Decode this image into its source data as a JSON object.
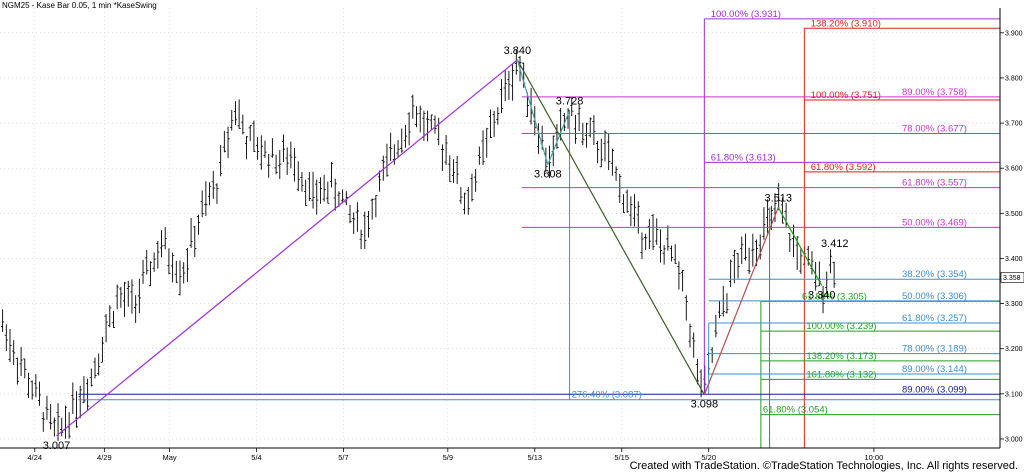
{
  "header": {
    "title": "NGM25 - Kase Bar 0.05, 1 min  *KaseSwing"
  },
  "footer": {
    "credit": "Created with TradeStation. ©TradeStation Technologies, Inc. All rights reserved."
  },
  "colors": {
    "purple": "#9b30d9",
    "magenta": "#cc33cc",
    "red": "#dd2222",
    "blue": "#3b8fd0",
    "green": "#22a022",
    "navy": "#1a1a99",
    "olive": "#3d5f2a",
    "teal": "#4aa0a0",
    "brown": "#b05050",
    "bars": "#000000"
  },
  "chart_data": {
    "type": "ohlc",
    "yaxis": {
      "range": [
        2.98,
        3.955
      ],
      "ticks": [
        "3.000",
        "3.100",
        "3.200",
        "3.300",
        "3.400",
        "3.500",
        "3.600",
        "3.700",
        "3.800",
        "3.900"
      ],
      "current_price": "3.358"
    },
    "xaxis": {
      "ticks": [
        {
          "label": "4/24",
          "x": 8
        },
        {
          "label": "4/29",
          "x": 24
        },
        {
          "label": "May",
          "x": 39
        },
        {
          "label": "5/4",
          "x": 59
        },
        {
          "label": "5/7",
          "x": 79
        },
        {
          "label": "5/9",
          "x": 103
        },
        {
          "label": "5/13",
          "x": 123
        },
        {
          "label": "5/15",
          "x": 143
        },
        {
          "label": "5/20",
          "x": 163
        },
        {
          "label": "10:00",
          "x": 201
        }
      ]
    },
    "swings": [
      {
        "label": "3.007",
        "x": 13,
        "y": 3.007,
        "pos": "below"
      },
      {
        "label": "3.840",
        "x": 119,
        "y": 3.84,
        "pos": "above"
      },
      {
        "label": "3.608",
        "x": 126,
        "y": 3.608,
        "pos": "below"
      },
      {
        "label": "3.728",
        "x": 131,
        "y": 3.728,
        "pos": "above"
      },
      {
        "label": "3.098",
        "x": 162,
        "y": 3.098,
        "pos": "below"
      },
      {
        "label": "3.513",
        "x": 179,
        "y": 3.513,
        "pos": "above"
      },
      {
        "label": "3.412",
        "x": 192,
        "y": 3.412,
        "pos": "above"
      },
      {
        "label": "3.340",
        "x": 189,
        "y": 3.34,
        "pos": "below"
      }
    ],
    "trend_lines": [
      {
        "from": [
          13,
          3.007
        ],
        "to": [
          119,
          3.84
        ],
        "color": "purple"
      },
      {
        "from": [
          119,
          3.84
        ],
        "to": [
          162,
          3.098
        ],
        "color": "olive"
      },
      {
        "from": [
          119,
          3.84
        ],
        "to": [
          126,
          3.608
        ],
        "color": "teal"
      },
      {
        "from": [
          126,
          3.608
        ],
        "to": [
          131,
          3.728
        ],
        "color": "teal"
      },
      {
        "from": [
          162,
          3.098
        ],
        "to": [
          179,
          3.513
        ],
        "color": "brown"
      },
      {
        "from": [
          179,
          3.513
        ],
        "to": [
          189,
          3.34
        ],
        "color": "green"
      }
    ],
    "verticals": [
      {
        "x": 162,
        "from": 3.098,
        "to": 3.931,
        "color": "purple"
      },
      {
        "x": 185,
        "from": 2.98,
        "to": 3.91,
        "color": "red"
      },
      {
        "x": 131,
        "from": 3.087,
        "to": 3.728,
        "color": "blue"
      },
      {
        "x": 163,
        "from": 3.098,
        "to": 3.257,
        "color": "blue"
      },
      {
        "x": 175,
        "from": 2.98,
        "to": 3.305,
        "color": "green"
      },
      {
        "x": 177,
        "from": 2.98,
        "to": 3.513,
        "color": "green"
      }
    ],
    "levels": [
      {
        "label": "100.00% (3.931)",
        "value": 3.931,
        "color": "purple",
        "x1": 162,
        "x2": 230,
        "lx": 163
      },
      {
        "label": "138.20% (3.910)",
        "value": 3.91,
        "color": "red",
        "x1": 185,
        "x2": 230,
        "lx": 186
      },
      {
        "label": "89.00% (3.758)",
        "value": 3.758,
        "color": "magenta",
        "x1": 120,
        "x2": 230,
        "lx": 207
      },
      {
        "label": "100.00% (3.751)",
        "value": 3.751,
        "color": "red",
        "x1": 185,
        "x2": 230,
        "lx": 186
      },
      {
        "label": "78.00% (3.677)",
        "value": 3.677,
        "color": "magenta",
        "x1": 120,
        "x2": 230,
        "lx": 207
      },
      {
        "label": "61.80% (3.613)",
        "value": 3.613,
        "color": "purple",
        "x1": 162,
        "x2": 230,
        "lx": 163
      },
      {
        "label": "61.80% (3.592)",
        "value": 3.592,
        "color": "red",
        "x1": 185,
        "x2": 230,
        "lx": 186
      },
      {
        "label": "61.80% (3.557)",
        "value": 3.557,
        "color": "magenta",
        "x1": 120,
        "x2": 230,
        "lx": 207
      },
      {
        "label": "50.00% (3.469)",
        "value": 3.469,
        "color": "magenta",
        "x1": 120,
        "x2": 230,
        "lx": 207
      },
      {
        "label": "38.20% (3.354)",
        "value": 3.354,
        "color": "blue",
        "x1": 163,
        "x2": 230,
        "lx": 207
      },
      {
        "label": "61.80% (3.305)",
        "value": 3.305,
        "color": "green",
        "x1": 175,
        "x2": 230,
        "lx": 184
      },
      {
        "label": "50.00% (3.306)",
        "value": 3.306,
        "color": "blue",
        "x1": 163,
        "x2": 230,
        "lx": 207
      },
      {
        "label": "61.80% (3.257)",
        "value": 3.257,
        "color": "blue",
        "x1": 163,
        "x2": 230,
        "lx": 207
      },
      {
        "label": "100.00% (3.239)",
        "value": 3.239,
        "color": "green",
        "x1": 175,
        "x2": 230,
        "lx": 185
      },
      {
        "label": "78.00% (3.189)",
        "value": 3.189,
        "color": "blue",
        "x1": 163,
        "x2": 230,
        "lx": 207
      },
      {
        "label": "138.20% (3.173)",
        "value": 3.173,
        "color": "green",
        "x1": 175,
        "x2": 230,
        "lx": 185
      },
      {
        "label": "89.00% (3.144)",
        "value": 3.144,
        "color": "blue",
        "x1": 163,
        "x2": 230,
        "lx": 207
      },
      {
        "label": "161.80% (3.132)",
        "value": 3.132,
        "color": "green",
        "x1": 175,
        "x2": 230,
        "lx": 185
      },
      {
        "label": "89.00% (3.099)",
        "value": 3.099,
        "color": "navy",
        "x1": 18,
        "x2": 230,
        "lx": 207
      },
      {
        "label": "276.40% (3.087)",
        "value": 3.087,
        "color": "blue",
        "x1": 18,
        "x2": 230,
        "lx": 131
      },
      {
        "label": "61.80% (3.054)",
        "value": 3.054,
        "color": "green",
        "x1": 175,
        "x2": 230,
        "lx": 175
      }
    ],
    "bars": {
      "path": [
        [
          0,
          3.27
        ],
        [
          3,
          3.2
        ],
        [
          8,
          3.1
        ],
        [
          13,
          3.007
        ],
        [
          16,
          3.06
        ],
        [
          21,
          3.14
        ],
        [
          25,
          3.26
        ],
        [
          27,
          3.31
        ],
        [
          31,
          3.3
        ],
        [
          37,
          3.43
        ],
        [
          42,
          3.37
        ],
        [
          46,
          3.49
        ],
        [
          50,
          3.57
        ],
        [
          54,
          3.74
        ],
        [
          57,
          3.66
        ],
        [
          60,
          3.64
        ],
        [
          64,
          3.62
        ],
        [
          68,
          3.62
        ],
        [
          72,
          3.53
        ],
        [
          75,
          3.56
        ],
        [
          78,
          3.55
        ],
        [
          80,
          3.5
        ],
        [
          84,
          3.46
        ],
        [
          86,
          3.53
        ],
        [
          92,
          3.67
        ],
        [
          95,
          3.73
        ],
        [
          100,
          3.67
        ],
        [
          103,
          3.64
        ],
        [
          107,
          3.52
        ],
        [
          110,
          3.6
        ],
        [
          115,
          3.74
        ],
        [
          119,
          3.84
        ],
        [
          122,
          3.75
        ],
        [
          126,
          3.608
        ],
        [
          131,
          3.728
        ],
        [
          134,
          3.68
        ],
        [
          139,
          3.64
        ],
        [
          143,
          3.55
        ],
        [
          147,
          3.47
        ],
        [
          151,
          3.44
        ],
        [
          155,
          3.4
        ],
        [
          158,
          3.3
        ],
        [
          160,
          3.16
        ],
        [
          162,
          3.098
        ],
        [
          165,
          3.25
        ],
        [
          169,
          3.38
        ],
        [
          172,
          3.42
        ],
        [
          175,
          3.45
        ],
        [
          177,
          3.48
        ],
        [
          179,
          3.513
        ],
        [
          183,
          3.42
        ],
        [
          186,
          3.38
        ],
        [
          189,
          3.34
        ],
        [
          192,
          3.4
        ]
      ]
    }
  }
}
